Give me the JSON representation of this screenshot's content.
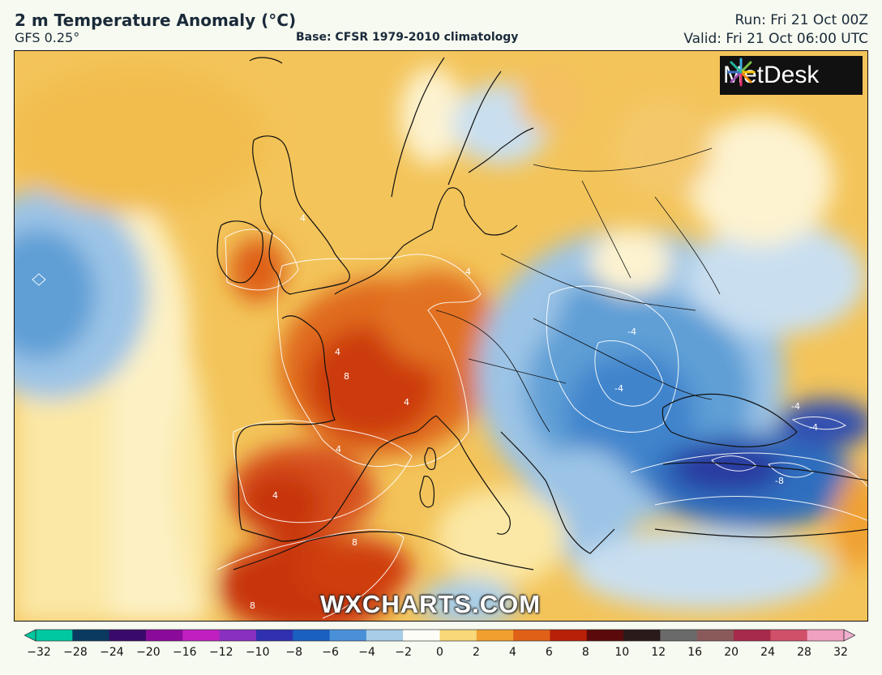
{
  "header": {
    "title": "2 m Temperature Anomaly (°C)",
    "model": "GFS 0.25°",
    "base": "Base: CFSR 1979-2010 climatology",
    "run": "Run: Fri 21 Oct 00Z",
    "valid": "Valid: Fri 21 Oct 06:00 UTC"
  },
  "logo": {
    "text": "MetDesk",
    "icon": "starburst-logo-icon"
  },
  "watermark": "WXCHARTS.COM",
  "map": {
    "region": "Europe",
    "contour_labels": [
      "4",
      "4",
      "4",
      "8",
      "4",
      "4",
      "4",
      "8",
      "8",
      "-4",
      "-4",
      "-4",
      "-4",
      "-8"
    ],
    "colors": {
      "neutral": "#fdf6d8",
      "warm_light": "#f6cf6a",
      "warm": "#f0a030",
      "hot": "#e46a18",
      "hotter": "#c9320c",
      "cold_light": "#c9dff0",
      "cold": "#5f9fd6",
      "colder": "#2a6ec0",
      "coldest": "#2c1a8c"
    }
  },
  "colorbar": {
    "ticks": [
      "−32",
      "−28",
      "−24",
      "−20",
      "−16",
      "−12",
      "−10",
      "−8",
      "−6",
      "−4",
      "−2",
      "0",
      "2",
      "4",
      "6",
      "8",
      "10",
      "12",
      "16",
      "20",
      "24",
      "28",
      "32"
    ],
    "stops": [
      "#00c8a0",
      "#0a3a60",
      "#3a0a6a",
      "#8a0a9a",
      "#c020c0",
      "#8a30c0",
      "#3030b0",
      "#1a60c0",
      "#4a90d8",
      "#a8cde8",
      "#fdfdf8",
      "#f8d878",
      "#f0a030",
      "#e06018",
      "#b82008",
      "#5a0a0a",
      "#2a1a1a",
      "#6a6a6a",
      "#8a5a5a",
      "#a82a4a",
      "#d0506a",
      "#f0a0c0"
    ]
  }
}
